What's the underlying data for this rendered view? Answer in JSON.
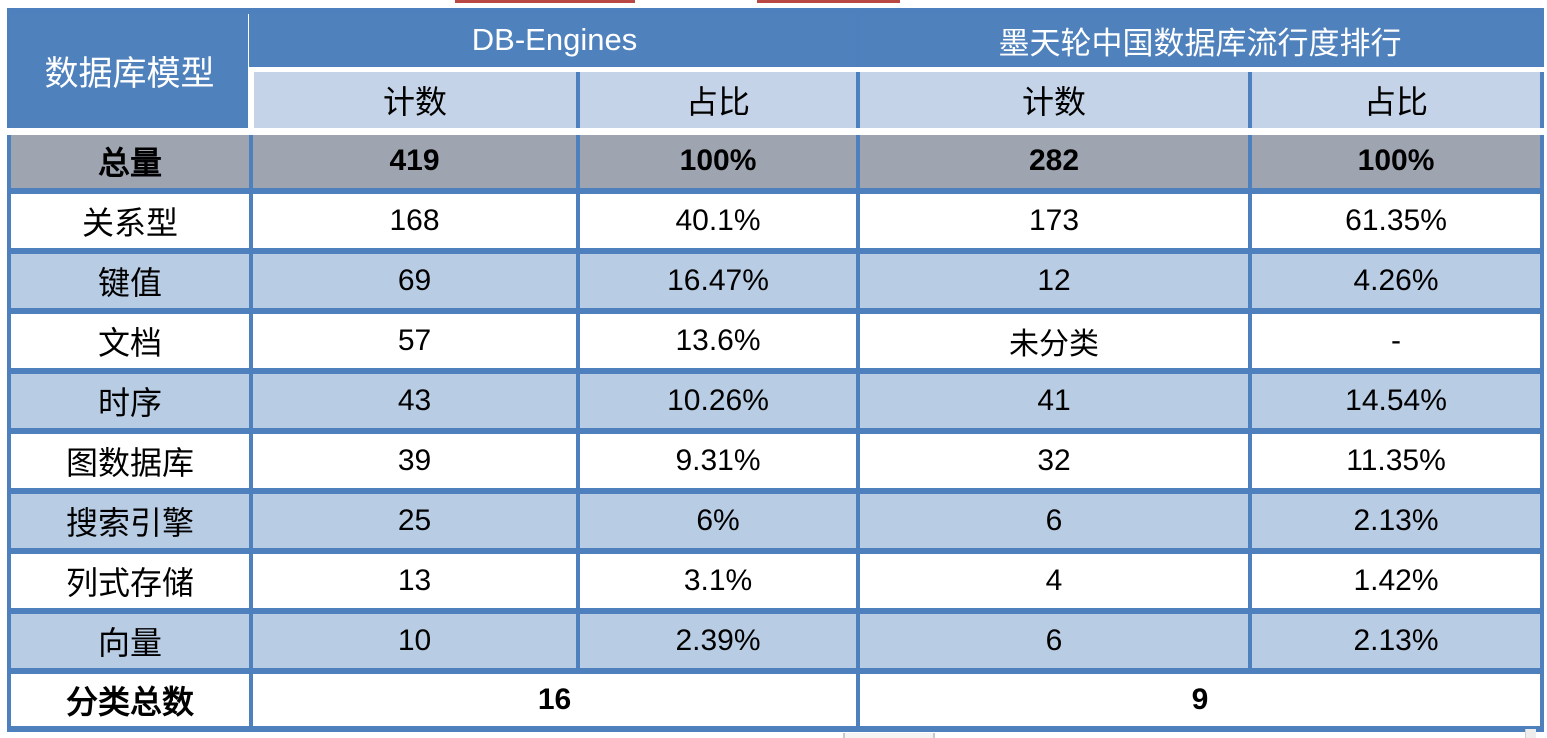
{
  "colors": {
    "header_blue": "#4f81bd",
    "subheader_blue": "#c4d3e8",
    "row_blue": "#b8cce4",
    "total_gray": "#9ea5b0",
    "border_blue": "#4e80bd",
    "artifact_red": "#b94743",
    "header_text": "#ffffff",
    "body_text": "#000000"
  },
  "table": {
    "corner_header": "数据库模型",
    "groups": [
      {
        "label": "DB-Engines",
        "columns": [
          "计数",
          "占比"
        ]
      },
      {
        "label": "墨天轮中国数据库流行度排行",
        "columns": [
          "计数",
          "占比"
        ]
      }
    ],
    "total_row": {
      "label": "总量",
      "values": [
        "419",
        "100%",
        "282",
        "100%"
      ]
    },
    "rows": [
      {
        "label": "关系型",
        "values": [
          "168",
          "40.1%",
          "173",
          "61.35%"
        ]
      },
      {
        "label": "键值",
        "values": [
          "69",
          "16.47%",
          "12",
          "4.26%"
        ]
      },
      {
        "label": "文档",
        "values": [
          "57",
          "13.6%",
          "未分类",
          "-"
        ]
      },
      {
        "label": "时序",
        "values": [
          "43",
          "10.26%",
          "41",
          "14.54%"
        ]
      },
      {
        "label": "图数据库",
        "values": [
          "39",
          "9.31%",
          "32",
          "11.35%"
        ]
      },
      {
        "label": "搜索引擎",
        "values": [
          "25",
          "6%",
          "6",
          "2.13%"
        ]
      },
      {
        "label": "列式存储",
        "values": [
          "13",
          "3.1%",
          "4",
          "1.42%"
        ]
      },
      {
        "label": "向量",
        "values": [
          "10",
          "2.39%",
          "6",
          "2.13%"
        ]
      }
    ],
    "summary_row": {
      "label": "分类总数",
      "values": [
        "16",
        "9"
      ]
    }
  }
}
